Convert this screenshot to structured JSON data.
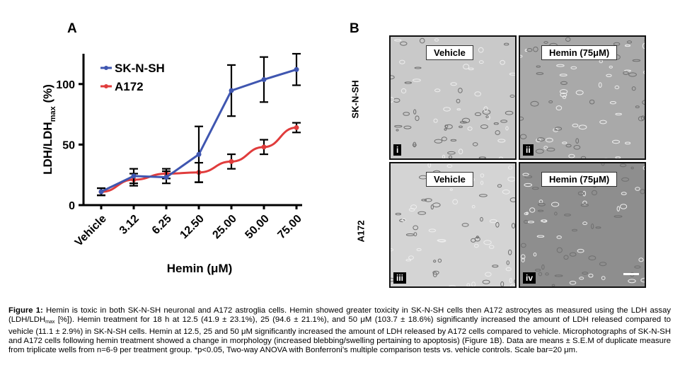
{
  "panels": {
    "a_label": "A",
    "b_label": "B"
  },
  "chart_data": {
    "type": "line",
    "ylabel": "LDH/LDHmax (%)",
    "ylabel_main": "LDH/LDH",
    "ylabel_sub": "max",
    "ylabel_unit": " (%)",
    "xlabel": "Hemin (μM)",
    "categories": [
      "Vehicle",
      "3.12",
      "6.25",
      "12.50",
      "25.00",
      "50.00",
      "75.00"
    ],
    "yticks": [
      0,
      50,
      100
    ],
    "ylim": [
      0,
      125
    ],
    "legend_position": "top-left",
    "series": [
      {
        "name": "SK-N-SH",
        "color": "#3f56b0",
        "values": [
          11.1,
          24,
          23,
          41.9,
          94.6,
          103.7,
          112
        ],
        "errors": [
          2.9,
          6,
          5,
          23.1,
          21.1,
          18.6,
          13
        ]
      },
      {
        "name": "A172",
        "color": "#e03c3c",
        "values": [
          11,
          21,
          26,
          27,
          36,
          48,
          64
        ],
        "errors": [
          3,
          5,
          4,
          8,
          6,
          6,
          4
        ]
      }
    ]
  },
  "micrographs": {
    "row_labels": [
      "SK-N-SH",
      "A172"
    ],
    "tiles": [
      {
        "condition": "Vehicle",
        "roman": "i",
        "tone": "#c9c9c9"
      },
      {
        "condition": "Hemin (75μM)",
        "roman": "ii",
        "tone": "#a9a9a9"
      },
      {
        "condition": "Vehicle",
        "roman": "iii",
        "tone": "#d4d4d4"
      },
      {
        "condition": "Hemin (75μM)",
        "roman": "iv",
        "tone": "#8e8e8e"
      }
    ]
  },
  "caption": {
    "label": "Figure 1:",
    "part1": " Hemin is toxic in both SK-N-SH neuronal and A172 astroglia cells. Hemin showed greater toxicity in SK-N-SH cells then A172 astrocytes as measured using the LDH assay (LDH/LDH",
    "sub": "max",
    "part2": " [%]). Hemin treatment for 18 h at 12.5 (41.9 ± 23.1%), 25 (94.6 ± 21.1%), and 50 μM (103.7 ± 18.6%) significantly increased the amount of LDH released compared to vehicle (11.1 ± 2.9%) in SK-N-SH cells. Hemin at 12.5, 25 and 50 μM significantly increased the amount of LDH released by A172 cells compared to vehicle. Microphotographs of SK-N-SH and A172 cells following hemin treatment showed a change in morphology (increased blebbing/swelling pertaining to apoptosis) (Figure 1B). Data are means ± S.E.M of duplicate measure from triplicate wells from n=6-9 per treatment group. *p<0.05, Two-way ANOVA with Bonferroni’s multiple comparison tests vs. vehicle controls. Scale bar=20 μm."
  }
}
